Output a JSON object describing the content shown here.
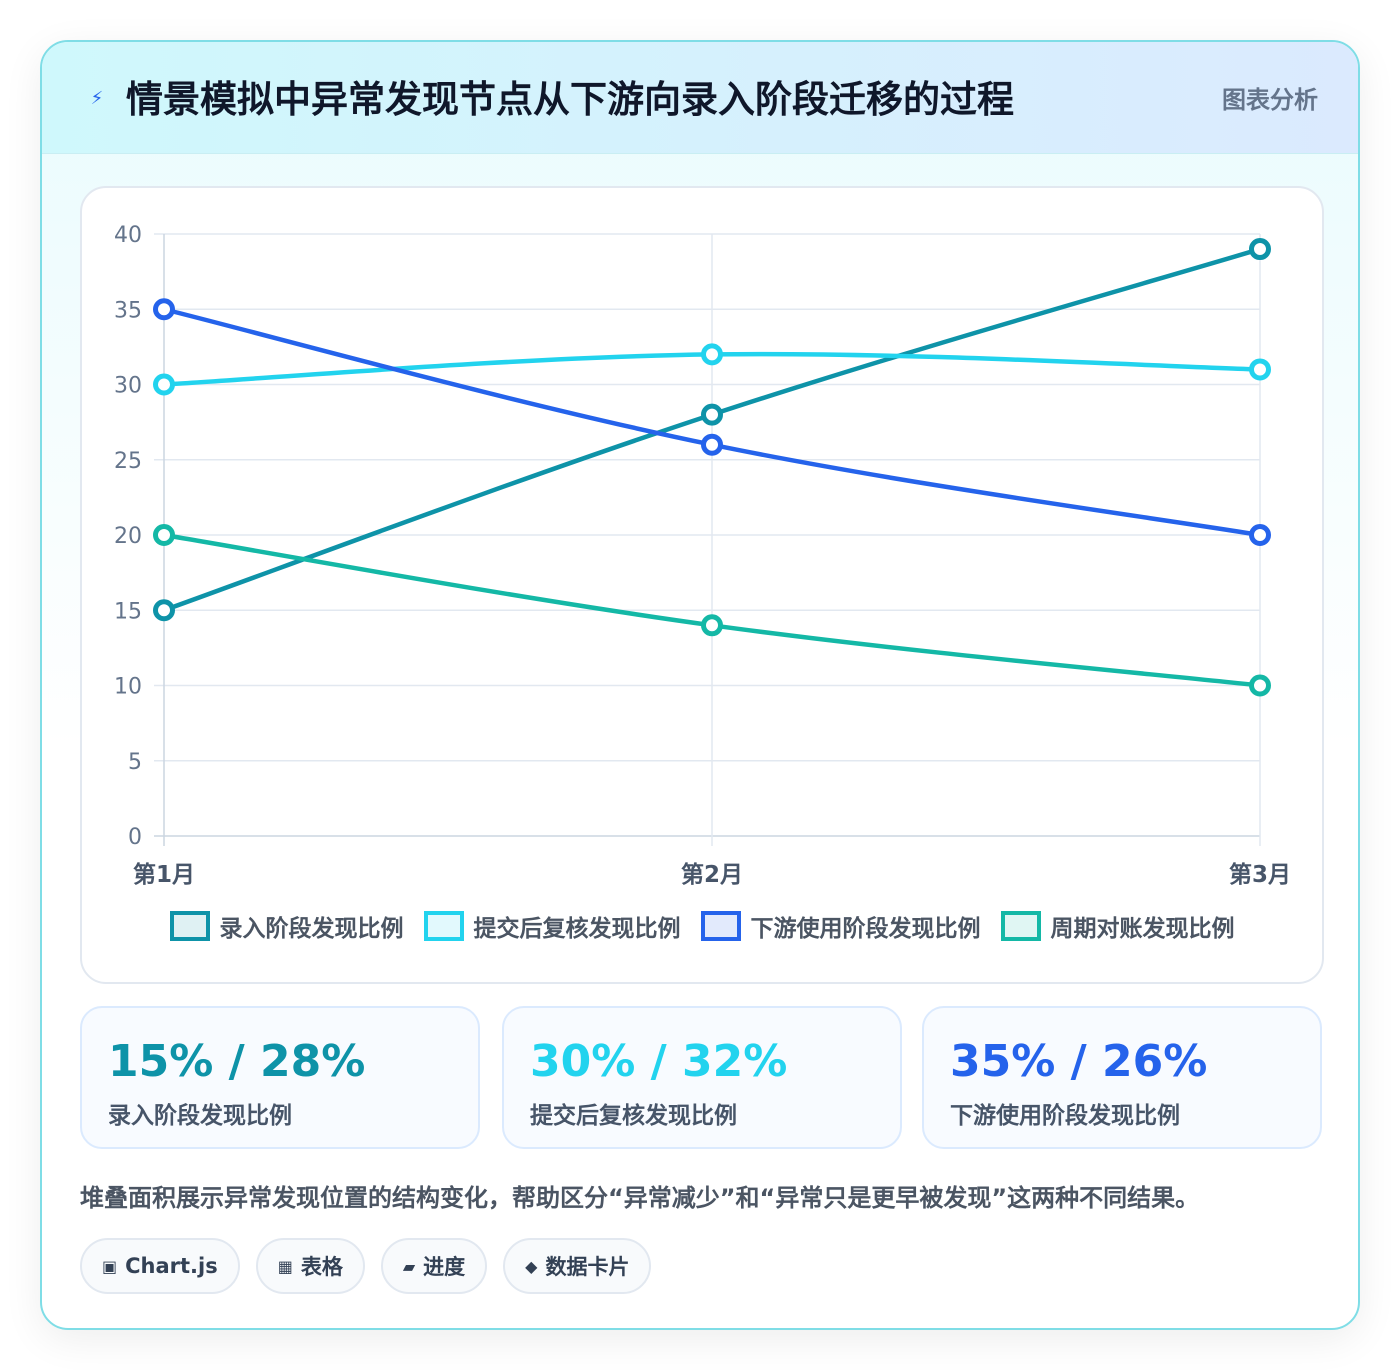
{
  "header": {
    "title": "情景模拟中异常发现节点从下游向录入阶段迁移的过程",
    "tag": "图表分析",
    "icon": "lightning-icon"
  },
  "chart_data": {
    "type": "line",
    "categories": [
      "第1月",
      "第2月",
      "第3月"
    ],
    "ylim": [
      0,
      40
    ],
    "yticks": [
      0,
      5,
      10,
      15,
      20,
      25,
      30,
      35,
      40
    ],
    "grid": true,
    "legend_position": "bottom",
    "series": [
      {
        "name": "录入阶段发现比例",
        "values": [
          15,
          28,
          39
        ],
        "color": "#0e93a8"
      },
      {
        "name": "提交后复核发现比例",
        "values": [
          30,
          32,
          31
        ],
        "color": "#22d3ee"
      },
      {
        "name": "下游使用阶段发现比例",
        "values": [
          35,
          26,
          20
        ],
        "color": "#2563eb"
      },
      {
        "name": "周期对账发现比例",
        "values": [
          20,
          14,
          10
        ],
        "color": "#14b8a6"
      }
    ]
  },
  "stats": [
    {
      "value": "15% / 28%",
      "label": "录入阶段发现比例",
      "color": "#0e93a8"
    },
    {
      "value": "30% / 32%",
      "label": "提交后复核发现比例",
      "color": "#22d3ee"
    },
    {
      "value": "35% / 26%",
      "label": "下游使用阶段发现比例",
      "color": "#2563eb"
    }
  ],
  "description": "堆叠面积展示异常发现位置的结构变化，帮助区分“异常减少”和“异常只是更早被发现”这两种不同结果。",
  "chips": [
    {
      "icon": "▣",
      "label": "Chart.js"
    },
    {
      "icon": "▦",
      "label": "表格"
    },
    {
      "icon": "▰",
      "label": "进度"
    },
    {
      "icon": "◆",
      "label": "数据卡片"
    }
  ]
}
